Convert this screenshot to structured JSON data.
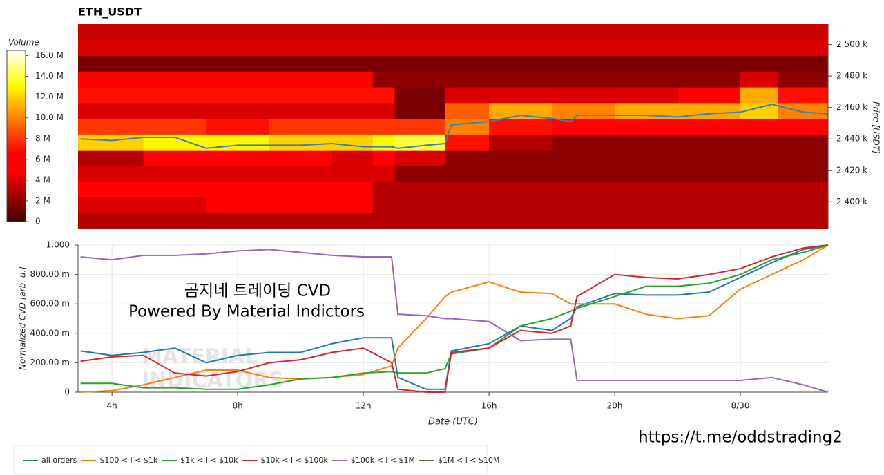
{
  "chart_data": [
    {
      "type": "heatmap",
      "title": "ETH_USDT",
      "y_label": "Price [USDT]",
      "colorbar_label": "Volume",
      "xlim": [
        2.92,
        26.79
      ],
      "ylim": [
        2383,
        2513
      ],
      "yticks": [
        {
          "value": 2400,
          "label": "2.400 k"
        },
        {
          "value": 2420,
          "label": "2.420 k"
        },
        {
          "value": 2440,
          "label": "2.440 k"
        },
        {
          "value": 2460,
          "label": "2.460 k"
        },
        {
          "value": 2480,
          "label": "2.480 k"
        },
        {
          "value": 2500,
          "label": "2.500 k"
        }
      ],
      "zlim": [
        0,
        16.5
      ],
      "zticks": [
        0,
        {
          "value": 2,
          "label": "2 M"
        },
        {
          "value": 4,
          "label": "4 M"
        },
        {
          "value": 6,
          "label": "6 M"
        },
        {
          "value": 8,
          "label": "8 M"
        },
        {
          "value": 10,
          "label": "10.0 M"
        },
        {
          "value": 12,
          "label": "12.0 M"
        },
        {
          "value": 14,
          "label": "14.0 M"
        },
        {
          "value": 16,
          "label": "16.0 M"
        }
      ],
      "x_bins": [
        2.92,
        5,
        7,
        9,
        11,
        12.3,
        13,
        14.6,
        16,
        18,
        20,
        22,
        24,
        25.2,
        26.79
      ],
      "y_bins": [
        2383,
        2393,
        2403,
        2413,
        2423,
        2433,
        2443,
        2453,
        2463,
        2473,
        2483,
        2493,
        2503,
        2513
      ],
      "values": [
        [
          3,
          3,
          3,
          3,
          3,
          3,
          3,
          3,
          3,
          3,
          3,
          3,
          3,
          3
        ],
        [
          4,
          4,
          5,
          5,
          5,
          3,
          3,
          3,
          3,
          3,
          3,
          3,
          3,
          3
        ],
        [
          6,
          6,
          6,
          6,
          6,
          3,
          3,
          3,
          3,
          3,
          3,
          3,
          3,
          3
        ],
        [
          4,
          4,
          4,
          4,
          4,
          4,
          2,
          2,
          2,
          2,
          2,
          2,
          2,
          2
        ],
        [
          3,
          5,
          5,
          5,
          4,
          5,
          4,
          2,
          2,
          2,
          2,
          2,
          2,
          2
        ],
        [
          12,
          13,
          13,
          12,
          12,
          13,
          14,
          7,
          3,
          2,
          2,
          2,
          2,
          2
        ],
        [
          8,
          8,
          7,
          8,
          8,
          8,
          8,
          10,
          7,
          5,
          5,
          6,
          6,
          5
        ],
        [
          4,
          4,
          4,
          4,
          4,
          4,
          1.5,
          9,
          11,
          10,
          11,
          11,
          12,
          10
        ],
        [
          7,
          7,
          7,
          7,
          7,
          7,
          1.5,
          4,
          4,
          4,
          4,
          5,
          11,
          7
        ],
        [
          5,
          5,
          5,
          5,
          5,
          2,
          2,
          2,
          2,
          2,
          2,
          2,
          4,
          2
        ],
        [
          1.5,
          1.5,
          1.5,
          1.5,
          1.5,
          1.5,
          1.5,
          1.5,
          1.5,
          1.5,
          1.5,
          1.5,
          1.5,
          1.5
        ],
        [
          4,
          4,
          4,
          4,
          4,
          4,
          4,
          4,
          4,
          4,
          4,
          4,
          4,
          4
        ],
        [
          3.5,
          3.5,
          3.5,
          3.5,
          3.5,
          3.5,
          3.5,
          3.5,
          3.5,
          3.5,
          3.5,
          3.5,
          3.5,
          3.5
        ]
      ],
      "price": {
        "color": "#3a7fb8",
        "x": [
          3,
          4,
          5,
          6,
          7,
          8,
          9,
          10,
          11,
          12,
          12.9,
          13.1,
          14,
          14.6,
          14.8,
          16,
          17,
          18,
          18.6,
          18.8,
          20,
          21,
          22,
          23,
          24,
          25,
          26,
          26.79
        ],
        "values": [
          2440,
          2439,
          2441,
          2441,
          2434,
          2436,
          2436,
          2436,
          2437,
          2435,
          2435,
          2434,
          2436,
          2437,
          2449,
          2451,
          2455,
          2453,
          2451,
          2455,
          2455,
          2455,
          2454,
          2456,
          2457,
          2462,
          2457,
          2456
        ]
      }
    },
    {
      "type": "line",
      "x_label": "Date (UTC)",
      "y_label": "Normalized CVD [arb. u.]",
      "grid": true,
      "xlim": [
        2.92,
        26.79
      ],
      "ylim": [
        0,
        1
      ],
      "xticks": [
        {
          "value": 4,
          "label": "4h"
        },
        {
          "value": 8,
          "label": "8h"
        },
        {
          "value": 12,
          "label": "12h"
        },
        {
          "value": 16,
          "label": "16h"
        },
        {
          "value": 20,
          "label": "20h"
        },
        {
          "value": 24,
          "label": "8/30"
        }
      ],
      "yticks": [
        0,
        {
          "value": 0.2,
          "label": "200.00 m"
        },
        {
          "value": 0.4,
          "label": "400.00 m"
        },
        {
          "value": 0.6,
          "label": "600.00 m"
        },
        {
          "value": 0.8,
          "label": "800.00 m"
        },
        {
          "value": 1,
          "label": "1.000"
        }
      ],
      "x": [
        3,
        4,
        5,
        6,
        7,
        8,
        9,
        10,
        11,
        12,
        12.9,
        13.1,
        14,
        14.6,
        14.8,
        16,
        17,
        18,
        18.6,
        18.8,
        20,
        21,
        22,
        23,
        24,
        25,
        26,
        26.79
      ],
      "series": [
        {
          "name": "all orders",
          "color": "#1f77b4",
          "values": [
            0.28,
            0.25,
            0.27,
            0.3,
            0.2,
            0.25,
            0.27,
            0.27,
            0.33,
            0.37,
            0.37,
            0.1,
            0.02,
            0.02,
            0.28,
            0.33,
            0.45,
            0.42,
            0.5,
            0.58,
            0.67,
            0.66,
            0.66,
            0.68,
            0.78,
            0.88,
            0.97,
            1.0
          ]
        },
        {
          "name": "$100 < i < $1k",
          "color": "#ff7f0e",
          "values": [
            0.0,
            0.01,
            0.05,
            0.1,
            0.15,
            0.15,
            0.1,
            0.09,
            0.1,
            0.12,
            0.18,
            0.3,
            0.5,
            0.65,
            0.68,
            0.75,
            0.68,
            0.67,
            0.6,
            0.6,
            0.6,
            0.53,
            0.5,
            0.52,
            0.7,
            0.8,
            0.9,
            1.0
          ]
        },
        {
          "name": "$1k < i < $10k",
          "color": "#2ca02c",
          "values": [
            0.06,
            0.06,
            0.03,
            0.03,
            0.02,
            0.02,
            0.05,
            0.09,
            0.1,
            0.13,
            0.14,
            0.13,
            0.13,
            0.16,
            0.26,
            0.3,
            0.45,
            0.5,
            0.55,
            0.57,
            0.65,
            0.72,
            0.72,
            0.74,
            0.8,
            0.9,
            0.95,
            1.0
          ]
        },
        {
          "name": "$10k < i < $100k",
          "color": "#d62728",
          "values": [
            0.21,
            0.24,
            0.25,
            0.13,
            0.11,
            0.14,
            0.2,
            0.22,
            0.27,
            0.3,
            0.2,
            0.02,
            0.0,
            0.0,
            0.27,
            0.3,
            0.42,
            0.4,
            0.45,
            0.65,
            0.8,
            0.78,
            0.77,
            0.8,
            0.84,
            0.92,
            0.98,
            1.0
          ]
        },
        {
          "name": "$100k < i < $1M",
          "color": "#9467bd",
          "values": [
            0.92,
            0.9,
            0.93,
            0.93,
            0.94,
            0.96,
            0.97,
            0.95,
            0.93,
            0.92,
            0.92,
            0.53,
            0.52,
            0.5,
            0.5,
            0.48,
            0.35,
            0.36,
            0.36,
            0.08,
            0.08,
            0.08,
            0.08,
            0.08,
            0.08,
            0.1,
            0.05,
            0.0
          ]
        },
        {
          "name": "$1M < i < $10M",
          "color": "#8c564b",
          "values": [
            null,
            null,
            null,
            null,
            null,
            null,
            null,
            null,
            null,
            null,
            null,
            null,
            null,
            null,
            null,
            null,
            null,
            null,
            null,
            null,
            null,
            null,
            null,
            null,
            null,
            null,
            null,
            null
          ]
        }
      ],
      "annotations": [
        "곰지네 트레이딩 CVD",
        "Powered By Material Indictors",
        "MATERIAL",
        "INDICATORS",
        "https://t.me/oddstrading2"
      ]
    }
  ]
}
